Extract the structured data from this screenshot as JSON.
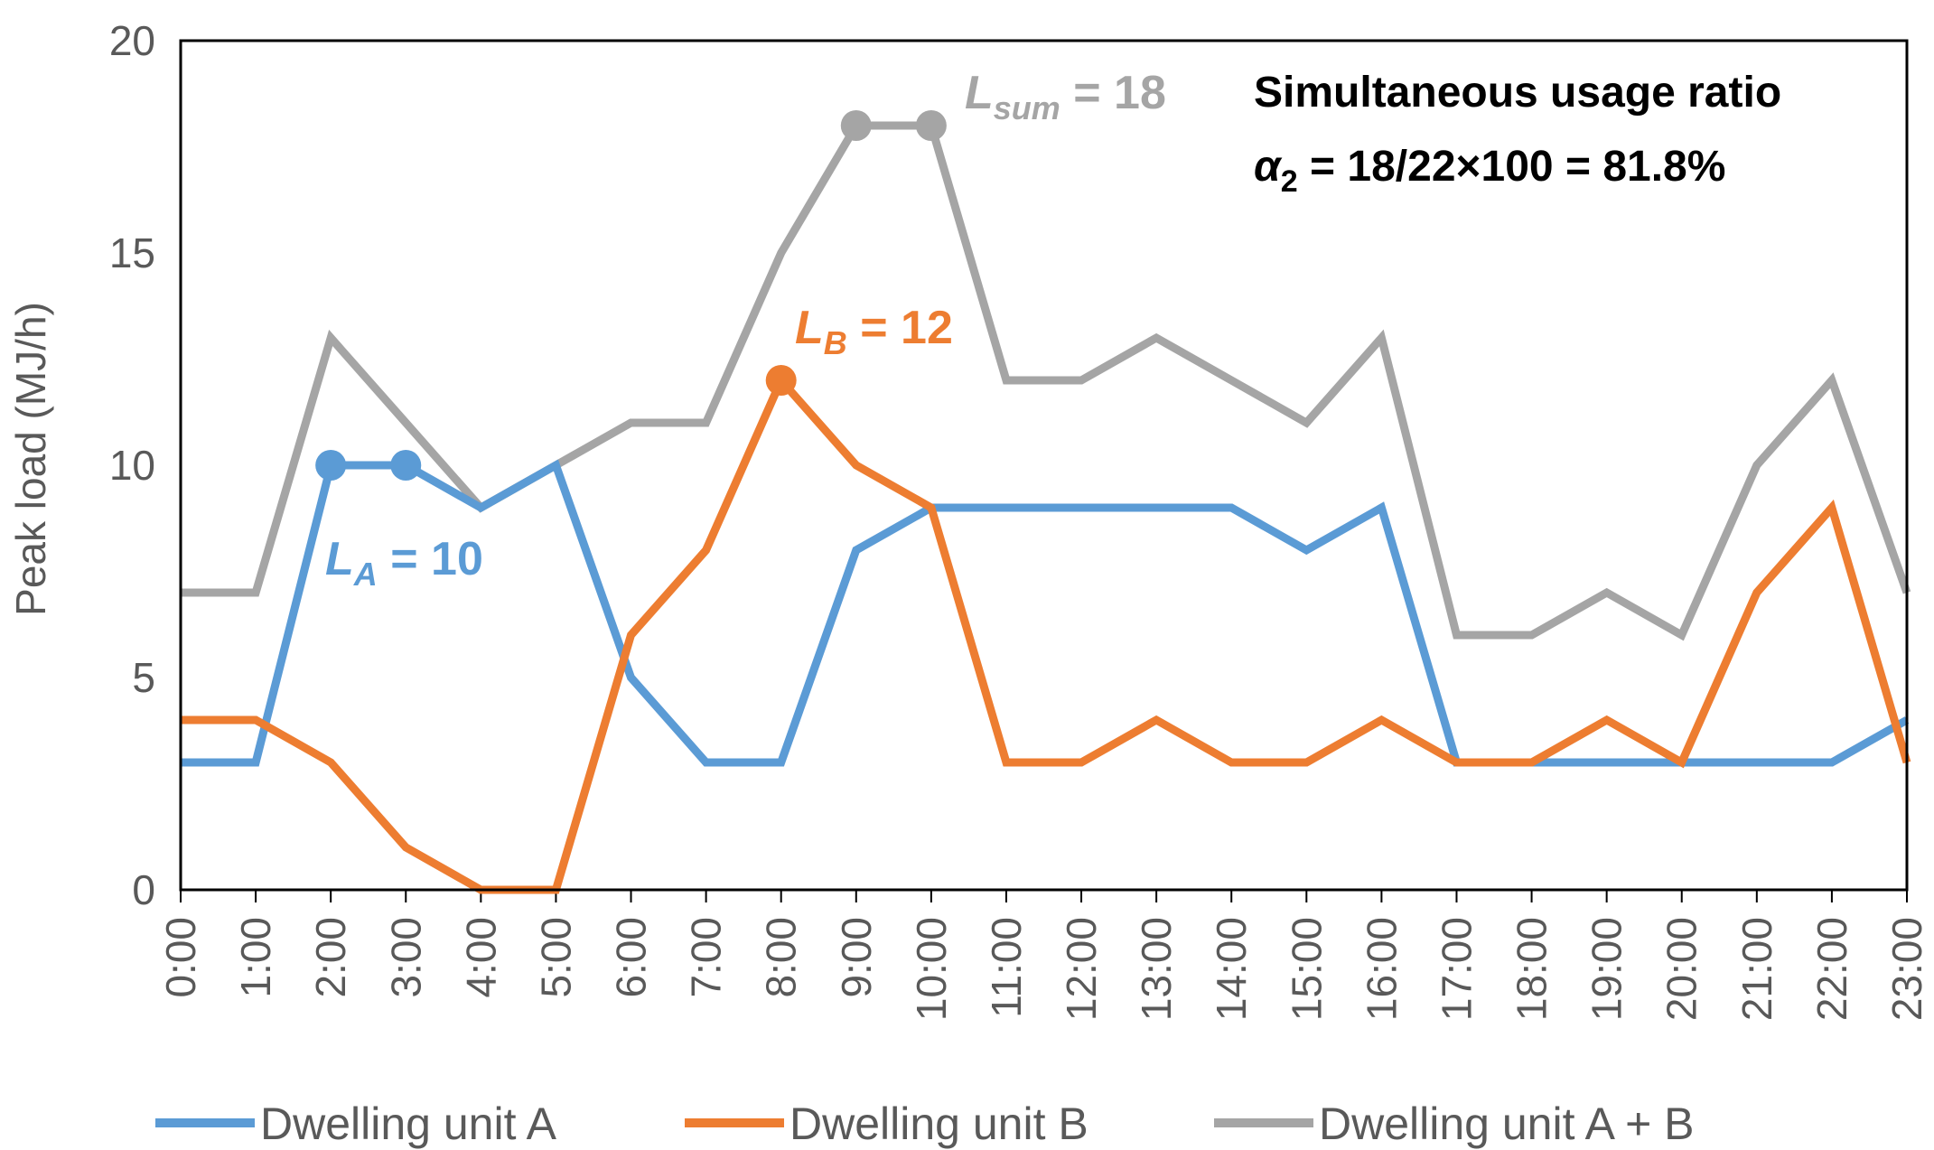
{
  "chart_data": {
    "type": "line",
    "title": "",
    "xlabel": "",
    "ylabel": "Peak load (MJ/h)",
    "ylim": [
      0,
      20
    ],
    "yticks": [
      0,
      5,
      10,
      15,
      20
    ],
    "grid": false,
    "legend": "bottom",
    "categories": [
      "0:00",
      "1:00",
      "2:00",
      "3:00",
      "4:00",
      "5:00",
      "6:00",
      "7:00",
      "8:00",
      "9:00",
      "10:00",
      "11:00",
      "12:00",
      "13:00",
      "14:00",
      "15:00",
      "16:00",
      "17:00",
      "18:00",
      "19:00",
      "20:00",
      "21:00",
      "22:00",
      "23:00"
    ],
    "series": [
      {
        "name": "Dwelling unit A",
        "color": "#5b9bd5",
        "values": [
          3,
          3,
          10,
          10,
          9,
          10,
          5,
          3,
          3,
          8,
          9,
          9,
          9,
          9,
          9,
          8,
          9,
          3,
          3,
          3,
          3,
          3,
          3,
          4
        ],
        "markers": [
          2,
          3
        ]
      },
      {
        "name": "Dwelling unit B",
        "color": "#ed7d31",
        "values": [
          4,
          4,
          3,
          1,
          0,
          0,
          6,
          8,
          12,
          10,
          9,
          3,
          3,
          4,
          3,
          3,
          4,
          3,
          3,
          4,
          3,
          7,
          9,
          3
        ],
        "markers": [
          8
        ]
      },
      {
        "name": "Dwelling unit A + B",
        "color": "#a5a5a5",
        "values": [
          7,
          7,
          13,
          11,
          9,
          10,
          11,
          11,
          15,
          18,
          18,
          12,
          12,
          13,
          12,
          11,
          13,
          6,
          6,
          7,
          6,
          10,
          12,
          7
        ],
        "markers": [
          9,
          10
        ]
      }
    ],
    "annotations": {
      "la": {
        "letter": "L",
        "sub": "A",
        "rest": " = 10"
      },
      "lb": {
        "letter": "L",
        "sub": "B",
        "rest": " = 12"
      },
      "lsum": {
        "letter": "L",
        "sub": "sum",
        "rest": " = 18"
      }
    },
    "ratio_text": {
      "line1": "Simultaneous usage ratio",
      "alpha": "α",
      "alpha_sub": "2",
      "line2_rest": " = 18/22×100 = 81.8%"
    }
  }
}
